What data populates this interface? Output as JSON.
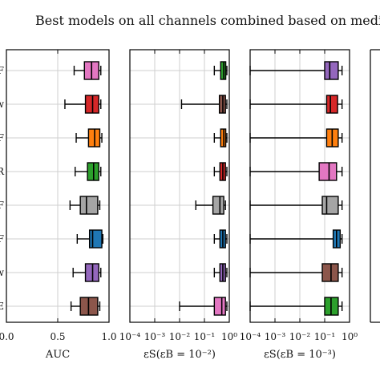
{
  "title": "Best models on all channels combined based on media",
  "chart_data": [
    {
      "type": "boxplot",
      "xlabel": "AUC",
      "xscale": "linear",
      "xlim": [
        0.0,
        1.0
      ],
      "xticks": [
        "0.0",
        "0.5",
        "1.0"
      ],
      "row_labels": [
        "F",
        "w",
        "F",
        "R",
        "F",
        "F",
        "w",
        "E"
      ],
      "grid": true,
      "boxes": [
        {
          "color": "#e377c2",
          "whisker_low": 0.66,
          "q1": 0.76,
          "median": 0.83,
          "q3": 0.9,
          "whisker_high": 0.92
        },
        {
          "color": "#d62728",
          "whisker_low": 0.57,
          "q1": 0.77,
          "median": 0.84,
          "q3": 0.9,
          "whisker_high": 0.92
        },
        {
          "color": "#ff7f0e",
          "whisker_low": 0.68,
          "q1": 0.8,
          "median": 0.86,
          "q3": 0.91,
          "whisker_high": 0.93
        },
        {
          "color": "#2ca02c",
          "whisker_low": 0.67,
          "q1": 0.79,
          "median": 0.85,
          "q3": 0.9,
          "whisker_high": 0.92
        },
        {
          "color": "#a5a5a5",
          "whisker_low": 0.62,
          "q1": 0.72,
          "median": 0.78,
          "q3": 0.89,
          "whisker_high": 0.91
        },
        {
          "color": "#1f77b4",
          "whisker_low": 0.69,
          "q1": 0.81,
          "median": 0.84,
          "q3": 0.93,
          "whisker_high": 0.94
        },
        {
          "color": "#9467bd",
          "whisker_low": 0.65,
          "q1": 0.77,
          "median": 0.84,
          "q3": 0.9,
          "whisker_high": 0.92
        },
        {
          "color": "#8c564b",
          "whisker_low": 0.63,
          "q1": 0.72,
          "median": 0.8,
          "q3": 0.89,
          "whisker_high": 0.91
        }
      ]
    },
    {
      "type": "boxplot",
      "xlabel": "εS(εB = 10⁻²)",
      "xscale": "log",
      "xlim": [
        0.0001,
        1
      ],
      "xticks": [
        "10⁻⁴",
        "10⁻³",
        "10⁻²",
        "10⁻¹",
        "10⁰"
      ],
      "grid": true,
      "boxes": [
        {
          "color": "#2ca02c",
          "whisker_low": 0.25,
          "q1": 0.45,
          "median": 0.6,
          "q3": 0.72,
          "whisker_high": 0.8
        },
        {
          "color": "#8c564b",
          "whisker_low": 0.012,
          "q1": 0.4,
          "median": 0.55,
          "q3": 0.7,
          "whisker_high": 0.8
        },
        {
          "color": "#ff7f0e",
          "whisker_low": 0.25,
          "q1": 0.45,
          "median": 0.6,
          "q3": 0.72,
          "whisker_high": 0.8
        },
        {
          "color": "#d62728",
          "whisker_low": 0.25,
          "q1": 0.42,
          "median": 0.55,
          "q3": 0.7,
          "whisker_high": 0.8
        },
        {
          "color": "#a5a5a5",
          "whisker_low": 0.045,
          "q1": 0.22,
          "median": 0.42,
          "q3": 0.6,
          "whisker_high": 0.7
        },
        {
          "color": "#1f77b4",
          "whisker_low": 0.25,
          "q1": 0.42,
          "median": 0.55,
          "q3": 0.7,
          "whisker_high": 0.8
        },
        {
          "color": "#9467bd",
          "whisker_low": 0.25,
          "q1": 0.42,
          "median": 0.55,
          "q3": 0.7,
          "whisker_high": 0.8
        },
        {
          "color": "#e377c2",
          "whisker_low": 0.01,
          "q1": 0.25,
          "median": 0.5,
          "q3": 0.7,
          "whisker_high": 0.8
        }
      ]
    },
    {
      "type": "boxplot",
      "xlabel": "εS(εB = 10⁻³)",
      "xscale": "log",
      "xlim": [
        0.0001,
        1
      ],
      "xticks": [
        "10⁻⁴",
        "10⁻³",
        "10⁻²",
        "10⁻¹",
        "10⁰"
      ],
      "grid": true,
      "boxes": [
        {
          "color": "#9467bd",
          "whisker_low": 0.0001,
          "q1": 0.1,
          "median": 0.16,
          "q3": 0.35,
          "whisker_high": 0.5
        },
        {
          "color": "#d62728",
          "whisker_low": 0.0001,
          "q1": 0.12,
          "median": 0.17,
          "q3": 0.33,
          "whisker_high": 0.5
        },
        {
          "color": "#ff7f0e",
          "whisker_low": 0.0001,
          "q1": 0.12,
          "median": 0.2,
          "q3": 0.35,
          "whisker_high": 0.5
        },
        {
          "color": "#e377c2",
          "whisker_low": 0.0001,
          "q1": 0.06,
          "median": 0.15,
          "q3": 0.3,
          "whisker_high": 0.5
        },
        {
          "color": "#a5a5a5",
          "whisker_low": 0.0001,
          "q1": 0.08,
          "median": 0.12,
          "q3": 0.35,
          "whisker_high": 0.5
        },
        {
          "color": "#1f77b4",
          "whisker_low": 0.0001,
          "q1": 0.22,
          "median": 0.3,
          "q3": 0.42,
          "whisker_high": 0.5
        },
        {
          "color": "#8c564b",
          "whisker_low": 0.0001,
          "q1": 0.08,
          "median": 0.18,
          "q3": 0.35,
          "whisker_high": 0.5
        },
        {
          "color": "#2ca02c",
          "whisker_low": 0.0001,
          "q1": 0.1,
          "median": 0.18,
          "q3": 0.35,
          "whisker_high": 0.5
        }
      ]
    }
  ]
}
